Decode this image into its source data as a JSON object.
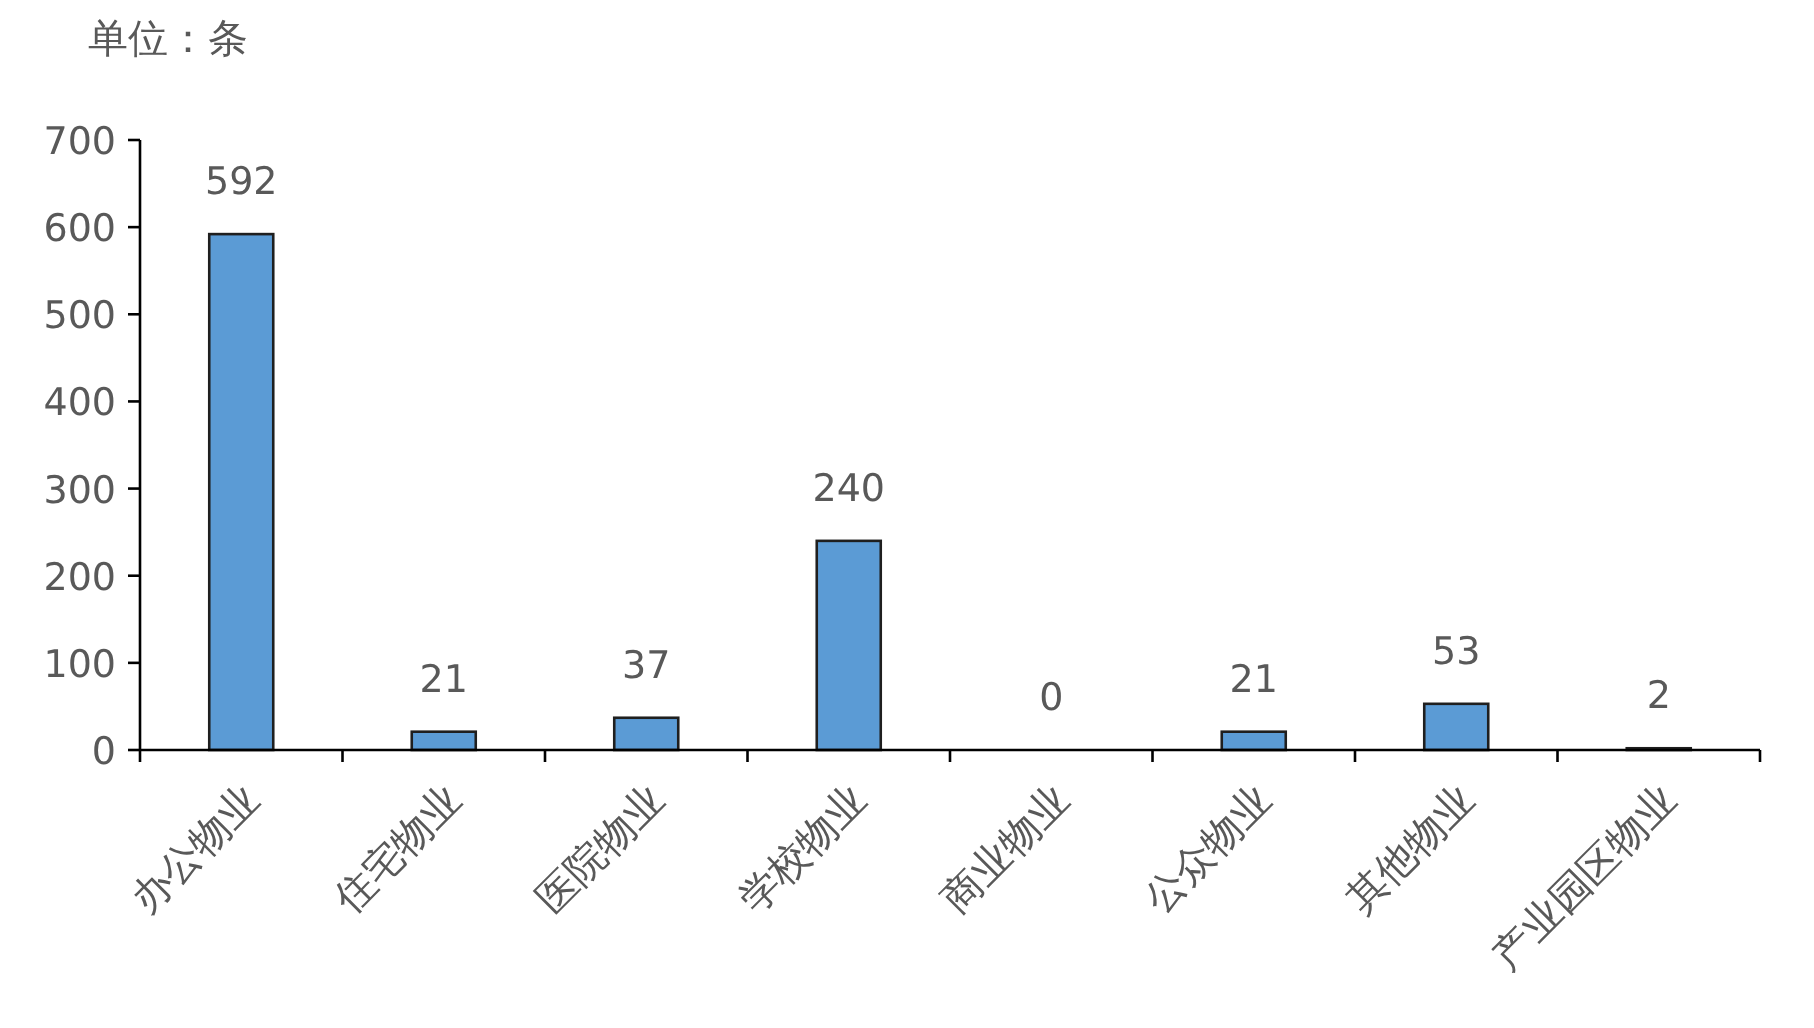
{
  "chart_data": {
    "type": "bar",
    "ylabel": "单位：条",
    "categories": [
      "办公物业",
      "住宅物业",
      "医院物业",
      "学校物业",
      "商业物业",
      "公众物业",
      "其他物业",
      "产业园区物业"
    ],
    "values": [
      592,
      21,
      37,
      240,
      0,
      21,
      53,
      2
    ],
    "color": "#5b9bd5",
    "ylim": [
      0,
      700
    ],
    "yticks": [
      0,
      100,
      200,
      300,
      400,
      500,
      600,
      700
    ],
    "data_labels": true,
    "grid": false
  }
}
